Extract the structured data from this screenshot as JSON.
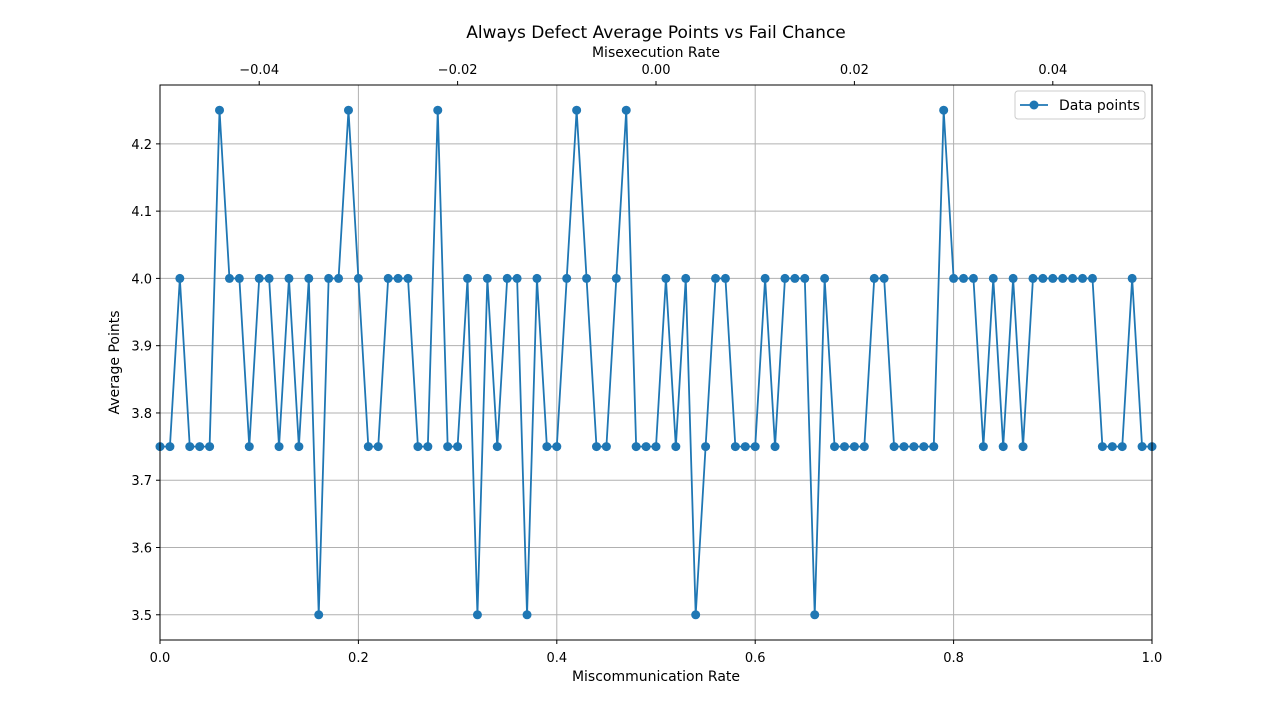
{
  "chart_data": {
    "type": "line",
    "title": "Always Defect Average Points vs Fail Chance",
    "xlabel": "Miscommunication Rate",
    "ylabel": "Average Points",
    "x2label": "Misexecution Rate",
    "xlim": [
      0.0,
      1.0
    ],
    "x2lim": [
      -0.05,
      0.05
    ],
    "ylim": [
      3.4625,
      4.2875
    ],
    "x_ticks": [
      0.0,
      0.2,
      0.4,
      0.6,
      0.8,
      1.0
    ],
    "x_tick_labels": [
      "0.0",
      "0.2",
      "0.4",
      "0.6",
      "0.8",
      "1.0"
    ],
    "x2_ticks": [
      -0.04,
      -0.02,
      0.0,
      0.02,
      0.04
    ],
    "x2_tick_labels": [
      "−0.04",
      "−0.02",
      "0.00",
      "0.02",
      "0.04"
    ],
    "y_ticks": [
      3.5,
      3.6,
      3.7,
      3.8,
      3.9,
      4.0,
      4.1,
      4.2
    ],
    "y_tick_labels": [
      "3.5",
      "3.6",
      "3.7",
      "3.8",
      "3.9",
      "4.0",
      "4.1",
      "4.2"
    ],
    "grid": true,
    "legend_position": "top-right",
    "colors": {
      "series": "#1f77b4",
      "grid": "#b0b0b0",
      "axes": "#000000"
    },
    "series": [
      {
        "name": "Data points",
        "marker": "circle",
        "x": [
          0.0,
          0.01,
          0.02,
          0.03,
          0.04,
          0.05,
          0.06,
          0.07,
          0.08,
          0.09,
          0.1,
          0.11,
          0.12,
          0.13,
          0.14,
          0.15,
          0.16,
          0.17,
          0.18,
          0.19,
          0.2,
          0.21,
          0.22,
          0.23,
          0.24,
          0.25,
          0.26,
          0.27,
          0.28,
          0.29,
          0.3,
          0.31,
          0.32,
          0.33,
          0.34,
          0.35,
          0.36,
          0.37,
          0.38,
          0.39,
          0.4,
          0.41,
          0.42,
          0.43,
          0.44,
          0.45,
          0.46,
          0.47,
          0.48,
          0.49,
          0.5,
          0.51,
          0.52,
          0.53,
          0.54,
          0.55,
          0.56,
          0.57,
          0.58,
          0.59,
          0.6,
          0.61,
          0.62,
          0.63,
          0.64,
          0.65,
          0.66,
          0.67,
          0.68,
          0.69,
          0.7,
          0.71,
          0.72,
          0.73,
          0.74,
          0.75,
          0.76,
          0.77,
          0.78,
          0.79,
          0.8,
          0.81,
          0.82,
          0.83,
          0.84,
          0.85,
          0.86,
          0.87,
          0.88,
          0.89,
          0.9,
          0.91,
          0.92,
          0.93,
          0.94,
          0.95,
          0.96,
          0.97,
          0.98,
          0.99,
          1.0
        ],
        "y": [
          3.75,
          3.75,
          4.0,
          3.75,
          3.75,
          3.75,
          4.25,
          4.0,
          4.0,
          3.75,
          4.0,
          4.0,
          3.75,
          4.0,
          3.75,
          4.0,
          3.5,
          4.0,
          4.0,
          4.25,
          4.0,
          3.75,
          3.75,
          4.0,
          4.0,
          4.0,
          3.75,
          3.75,
          4.25,
          3.75,
          3.75,
          4.0,
          3.5,
          4.0,
          3.75,
          4.0,
          4.0,
          3.5,
          4.0,
          3.75,
          3.75,
          4.0,
          4.25,
          4.0,
          3.75,
          3.75,
          4.0,
          4.25,
          3.75,
          3.75,
          3.75,
          4.0,
          3.75,
          4.0,
          3.5,
          3.75,
          4.0,
          4.0,
          3.75,
          3.75,
          3.75,
          4.0,
          3.75,
          4.0,
          4.0,
          4.0,
          3.5,
          4.0,
          3.75,
          3.75,
          3.75,
          3.75,
          4.0,
          4.0,
          3.75,
          3.75,
          3.75,
          3.75,
          3.75,
          4.25,
          4.0,
          4.0,
          4.0,
          3.75,
          4.0,
          3.75,
          4.0,
          3.75,
          4.0,
          4.0,
          4.0,
          4.0,
          4.0,
          4.0,
          4.0,
          3.75,
          3.75,
          3.75,
          4.0,
          3.75,
          3.75
        ]
      }
    ]
  }
}
